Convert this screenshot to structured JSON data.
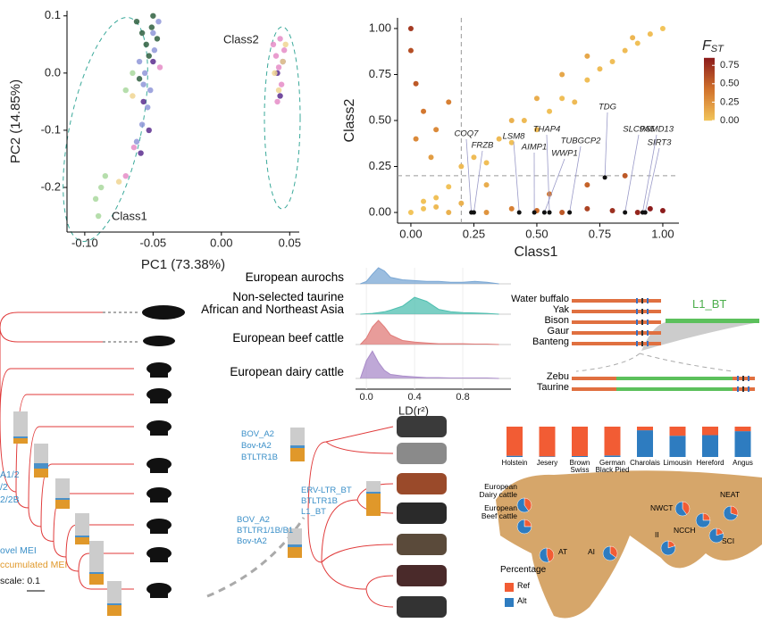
{
  "chart_data": [
    {
      "type": "scatter",
      "x_label": "PC1 (73.38%)",
      "y_label": "PC2 (14.85%)",
      "annotations": [
        "Class1",
        "Class2"
      ],
      "xlim": [
        -0.113,
        0.057
      ],
      "ylim": [
        -0.278,
        0.109
      ],
      "xticks": [
        {
          "value": -0.1,
          "label": "-0.10"
        },
        {
          "value": -0.05,
          "label": "-0.05"
        },
        {
          "value": 0,
          "label": "0.00"
        },
        {
          "value": 0.05,
          "label": "0.05"
        }
      ],
      "yticks": [
        0.1,
        {
          "value": 0,
          "label": "0.0"
        },
        -0.1,
        -0.2
      ],
      "series": [
        {
          "color": "#2f5f3f",
          "x": [
            -0.062,
            -0.058,
            -0.055,
            -0.051,
            -0.05,
            -0.053,
            -0.06,
            -0.047
          ],
          "y": [
            0.09,
            0.07,
            0.05,
            0.08,
            0.1,
            0.03,
            -0.01,
            0.06
          ]
        },
        {
          "color": "#8f96d8",
          "x": [
            -0.06,
            -0.056,
            -0.052,
            -0.049,
            -0.054,
            -0.058,
            -0.062,
            -0.05,
            -0.046,
            -0.057
          ],
          "y": [
            0.02,
            0.0,
            -0.03,
            0.04,
            -0.06,
            -0.09,
            -0.12,
            0.07,
            0.09,
            -0.02
          ]
        },
        {
          "color": "#5b2d8e",
          "x": [
            -0.057,
            -0.053,
            -0.059,
            -0.05,
            0.041,
            0.043,
            0.045
          ],
          "y": [
            -0.05,
            -0.1,
            -0.14,
            0.02,
            0.0,
            -0.04,
            0.02
          ]
        },
        {
          "color": "#e58cc7",
          "x": [
            -0.07,
            -0.064,
            -0.045,
            0.038,
            0.04,
            0.042,
            0.044,
            0.046,
            0.041,
            0.043
          ],
          "y": [
            -0.18,
            -0.13,
            0.01,
            0.05,
            0.03,
            0.01,
            -0.02,
            0.04,
            -0.05,
            0.06
          ]
        },
        {
          "color": "#f0d592",
          "x": [
            -0.075,
            -0.065,
            0.039,
            0.042,
            0.045,
            0.047
          ],
          "y": [
            -0.19,
            -0.04,
            0.0,
            -0.03,
            0.02,
            0.05
          ]
        },
        {
          "color": "#a9d89d",
          "x": [
            -0.092,
            -0.088,
            -0.085,
            -0.07,
            -0.09,
            -0.065
          ],
          "y": [
            -0.22,
            -0.2,
            -0.18,
            -0.03,
            -0.25,
            0.0
          ]
        }
      ]
    },
    {
      "type": "scatter",
      "x_label": "Class1",
      "y_label": "Class2",
      "color_title": {
        "symbol": "F",
        "subscript": "ST"
      },
      "xlim": [
        -0.053,
        1.064
      ],
      "ylim": [
        -0.058,
        1.058
      ],
      "xticks": [
        {
          "value": 0,
          "label": "0.00"
        },
        0.25,
        {
          "value": 0.5,
          "label": "0.50"
        },
        0.75,
        {
          "value": 1,
          "label": "1.00"
        }
      ],
      "yticks": [
        {
          "value": 1,
          "label": "1.00"
        },
        0.75,
        {
          "value": 0.5,
          "label": "0.50"
        },
        0.25,
        {
          "value": 0,
          "label": "0.00"
        }
      ],
      "guides": {
        "x": 0.2,
        "y": 0.2
      },
      "colorbar": {
        "lim": [
          0,
          0.85
        ],
        "ticks": [
          0.75,
          {
            "value": 0.5,
            "label": "0.50"
          },
          0.25,
          {
            "value": 0,
            "label": "0.00"
          }
        ],
        "colors": [
          "#f2c45a",
          "#d1722c",
          "#8c1c1c"
        ]
      },
      "x": [
        0.05,
        0.1,
        0.15,
        0.2,
        0.25,
        0.3,
        0.35,
        0.4,
        0.45,
        0.5,
        0.55,
        0.6,
        0.65,
        0.7,
        0.75,
        0.8,
        0.85,
        0.9,
        0.95,
        1.0,
        0.88,
        0.7,
        0.6,
        0.5,
        0.4,
        0.0,
        0.02,
        0.05,
        0.1,
        0.0,
        0.15,
        0.02,
        0.08,
        0.3,
        0.4,
        0.5,
        0.6,
        0.7,
        0.8,
        0.9,
        0.95,
        1.0,
        0.55,
        0.7,
        0.85,
        0.3,
        0.2,
        0.0,
        0.05,
        0.1,
        0.15
      ],
      "y": [
        0.06,
        0.08,
        0.14,
        0.25,
        0.3,
        0.27,
        0.4,
        0.38,
        0.5,
        0.45,
        0.55,
        0.62,
        0.6,
        0.72,
        0.78,
        0.82,
        0.88,
        0.92,
        0.97,
        1.0,
        0.95,
        0.85,
        0.75,
        0.62,
        0.5,
        0.88,
        0.7,
        0.55,
        0.45,
        1.0,
        0.6,
        0.4,
        0.3,
        0.0,
        0.02,
        0.01,
        0.0,
        0.02,
        0.01,
        0.0,
        0.02,
        0.01,
        0.1,
        0.15,
        0.2,
        0.15,
        0.05,
        0.0,
        0.02,
        0.03,
        0.0
      ],
      "fst": [
        0.01,
        0.02,
        0.01,
        0.05,
        0.04,
        0.03,
        0.05,
        0.02,
        0.05,
        0.05,
        0.02,
        0.03,
        0.05,
        0.03,
        0.04,
        0.03,
        0.04,
        0.02,
        0.03,
        0.0,
        0.07,
        0.15,
        0.15,
        0.12,
        0.1,
        0.6,
        0.55,
        0.4,
        0.3,
        0.7,
        0.35,
        0.3,
        0.2,
        0.25,
        0.35,
        0.45,
        0.55,
        0.65,
        0.75,
        0.8,
        0.85,
        0.9,
        0.4,
        0.5,
        0.55,
        0.12,
        0.1,
        0.0,
        0.01,
        0.05,
        0.1
      ],
      "highlights": {
        "labels": [
          "COQ7",
          "FRZB",
          "LSM8",
          "AIMP1",
          "THAP4",
          "WWP1",
          "TUBGCP2",
          "TDG",
          "SLC9A5",
          "PSMD13",
          "SIRT3"
        ],
        "x": [
          0.24,
          0.25,
          0.43,
          0.49,
          0.55,
          0.53,
          0.63,
          0.77,
          0.85,
          0.92,
          0.93
        ],
        "y": [
          0,
          0,
          0,
          0,
          0,
          0,
          0,
          0.19,
          0,
          0,
          0
        ]
      }
    },
    {
      "type": "ridgeline",
      "x_label": "LD(r²)",
      "xlim": [
        -0.09,
        1.2
      ],
      "xticks": [
        {
          "value": 0,
          "label": "0.0"
        },
        0.4,
        0.8
      ],
      "x": [
        -0.05,
        0,
        0.05,
        0.1,
        0.15,
        0.2,
        0.3,
        0.4,
        0.5,
        0.6,
        0.7,
        0.8,
        0.9,
        1.0,
        1.1
      ],
      "series": [
        {
          "name": "European  aurochs",
          "color": "#7aa7d4",
          "values": [
            0,
            0.3,
            1.2,
            2.0,
            1.6,
            0.8,
            0.5,
            0.4,
            0.3,
            0.3,
            0.2,
            0.2,
            0.3,
            0.2,
            0
          ]
        },
        {
          "name": "Non-selected taurine\nAfrican and Northeast Asia",
          "color": "#4fbfb0",
          "values": [
            0,
            0.05,
            0.1,
            0.2,
            0.3,
            0.5,
            1.0,
            2.1,
            1.6,
            0.6,
            0.3,
            0.2,
            0.15,
            0.1,
            0
          ]
        },
        {
          "name": "European beef cattle",
          "color": "#e07b78",
          "values": [
            0,
            0.8,
            2.2,
            3.0,
            2.2,
            1.2,
            0.5,
            0.3,
            0.2,
            0.1,
            0.1,
            0.1,
            0.05,
            0.05,
            0
          ]
        },
        {
          "name": "European dairy cattle",
          "color": "#a98bc9",
          "values": [
            0,
            2.2,
            3.4,
            2.0,
            1.0,
            0.5,
            0.3,
            0.2,
            0.1,
            0.1,
            0.05,
            0.05,
            0.05,
            0.05,
            0
          ]
        }
      ]
    },
    {
      "type": "bar",
      "stacked": true,
      "categories": [
        "Holstein",
        "Jesery",
        "Brown\nSwiss",
        "German\nBlack Pied",
        "Charolais",
        "Limousin",
        "Hereford",
        "Angus"
      ],
      "series": [
        {
          "color": "#2e7cc0",
          "values": [
            4,
            2,
            3,
            5,
            88,
            70,
            72,
            85
          ]
        },
        {
          "color": "#f25c34",
          "values": [
            96,
            98,
            97,
            95,
            12,
            30,
            28,
            15
          ]
        }
      ]
    }
  ],
  "map": {
    "legend": {
      "title": "Percentage",
      "items": [
        {
          "name": "Ref",
          "color": "#f25c34"
        },
        {
          "name": "Alt",
          "color": "#2e7cc0"
        }
      ]
    },
    "pies": [
      {
        "label": "European\nDairy cattle",
        "ref": 40,
        "alt": 60
      },
      {
        "label": "European\nBeef cattle",
        "ref": 25,
        "alt": 75
      },
      {
        "label": "AT",
        "ref": 45,
        "alt": 55
      },
      {
        "label": "AI",
        "ref": 35,
        "alt": 65
      },
      {
        "label": "II",
        "ref": 20,
        "alt": 80
      },
      {
        "label": "NWCT",
        "ref": 40,
        "alt": 60
      },
      {
        "label": "NCCH",
        "ref": 25,
        "alt": 75
      },
      {
        "label": "NEAT",
        "ref": 30,
        "alt": 70
      },
      {
        "label": "SCI",
        "ref": 20,
        "alt": 80
      }
    ]
  },
  "haplotype": {
    "species": [
      "Water buffalo",
      "Yak",
      "Bison",
      "Gaur",
      "Banteng",
      "Zebu",
      "Taurine"
    ],
    "element": "L1_BT"
  },
  "tree_left": {
    "labels": [
      "A1/2",
      "/2",
      "2/2B",
      "ovel MEI",
      "ccumulated MEI",
      "scale: 0.1"
    ],
    "bars": [
      [
        28,
        2,
        6
      ],
      [
        22,
        6,
        10
      ],
      [
        22,
        2,
        10
      ],
      [
        25,
        2,
        8
      ],
      [
        35,
        2,
        12
      ],
      [
        25,
        2,
        12
      ]
    ]
  },
  "tree_right": {
    "labels": [
      "BOV_A2",
      "Bov-tA2",
      "BTLTR1B",
      "ERV-LTR_BT",
      "BTLTR1B",
      "L1_BT",
      "BOV_A2",
      "BTLTR1/1B/B1",
      "Bov-tA2"
    ],
    "bars": [
      [
        20,
        3,
        15
      ],
      [
        12,
        2,
        25
      ],
      [
        18,
        3,
        12
      ]
    ]
  }
}
